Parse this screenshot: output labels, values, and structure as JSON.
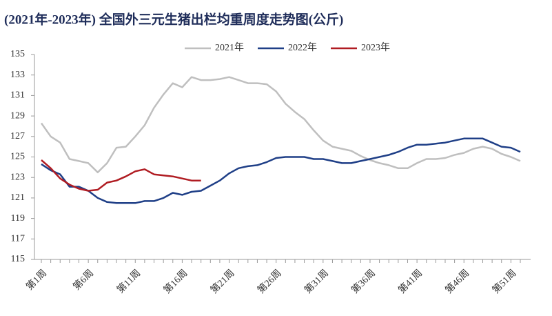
{
  "chart_data": {
    "type": "line",
    "title": "(2021年-2023年) 全国外三元生猪出栏均重周度走势图(公斤)",
    "categories": [
      "第1周",
      null,
      null,
      null,
      null,
      "第6周",
      null,
      null,
      null,
      null,
      "第11周",
      null,
      null,
      null,
      null,
      "第16周",
      null,
      null,
      null,
      null,
      "第21周",
      null,
      null,
      null,
      null,
      "第26周",
      null,
      null,
      null,
      null,
      "第31周",
      null,
      null,
      null,
      null,
      "第36周",
      null,
      null,
      null,
      null,
      "第41周",
      null,
      null,
      null,
      null,
      "第46周",
      null,
      null,
      null,
      null,
      "第51周",
      null
    ],
    "series": [
      {
        "name": "2021年",
        "color": "#bfbfbf",
        "values": [
          128.3,
          127.0,
          126.4,
          124.8,
          124.6,
          124.4,
          123.5,
          124.4,
          125.9,
          126.0,
          127.0,
          128.1,
          129.8,
          131.1,
          132.2,
          131.8,
          132.8,
          132.5,
          132.5,
          132.6,
          132.8,
          132.5,
          132.2,
          132.2,
          132.1,
          131.4,
          130.2,
          129.4,
          128.7,
          127.6,
          126.6,
          126.0,
          125.8,
          125.6,
          125.1,
          124.7,
          124.4,
          124.2,
          123.9,
          123.9,
          124.4,
          124.8,
          124.8,
          124.9,
          125.2,
          125.4,
          125.8,
          126.0,
          125.8,
          125.3,
          125.0,
          124.6
        ]
      },
      {
        "name": "2022年",
        "color": "#1f3f87",
        "values": [
          124.3,
          123.7,
          123.3,
          122.1,
          122.1,
          121.7,
          121.0,
          120.6,
          120.5,
          120.5,
          120.5,
          120.7,
          120.7,
          121.0,
          121.5,
          121.3,
          121.6,
          121.7,
          122.2,
          122.7,
          123.4,
          123.9,
          124.1,
          124.2,
          124.5,
          124.9,
          125.0,
          125.0,
          125.0,
          124.8,
          124.8,
          124.6,
          124.4,
          124.4,
          124.6,
          124.8,
          125.0,
          125.2,
          125.5,
          125.9,
          126.2,
          126.2,
          126.3,
          126.4,
          126.6,
          126.8,
          126.8,
          126.8,
          126.4,
          126.0,
          125.9,
          125.5
        ]
      },
      {
        "name": "2023年",
        "color": "#b01c22",
        "values": [
          124.7,
          123.9,
          122.9,
          122.3,
          121.9,
          121.7,
          121.8,
          122.5,
          122.7,
          123.1,
          123.6,
          123.8,
          123.3,
          123.2,
          123.1,
          122.9,
          122.7,
          122.7,
          null,
          null,
          null,
          null,
          null,
          null,
          null,
          null,
          null,
          null,
          null,
          null,
          null,
          null,
          null,
          null,
          null,
          null,
          null,
          null,
          null,
          null,
          null,
          null,
          null,
          null,
          null,
          null,
          null,
          null,
          null,
          null,
          null,
          null
        ]
      }
    ],
    "ylim": [
      115,
      135
    ],
    "yticks": [
      115,
      117,
      119,
      121,
      123,
      125,
      127,
      129,
      131,
      133,
      135
    ]
  }
}
